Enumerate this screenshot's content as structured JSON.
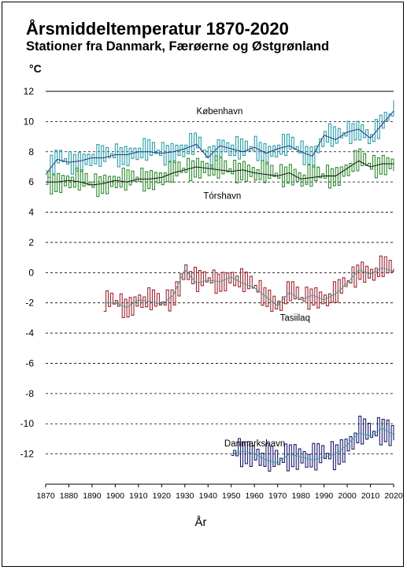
{
  "header": {
    "title": "Årsmiddeltemperatur 1870-2020",
    "subtitle": "Stationer fra Danmark, Færøerne og Østgrønland"
  },
  "chart_data": {
    "type": "line",
    "title": "Årsmiddeltemperatur 1870-2020",
    "subtitle": "Stationer fra Danmark, Færøerne og Østgrønland",
    "xlabel": "År",
    "ylabel": "°C",
    "xlim": [
      1870,
      2020
    ],
    "ylim": [
      -14,
      12
    ],
    "x_ticks": [
      1870,
      1880,
      1890,
      1900,
      1910,
      1920,
      1930,
      1940,
      1950,
      1960,
      1970,
      1980,
      1990,
      2000,
      2010,
      2020
    ],
    "y_ticks": [
      12,
      10,
      8,
      6,
      4,
      2,
      0,
      -2,
      -4,
      -6,
      -8,
      -10,
      -12
    ],
    "grid": "horizontal dashed",
    "series": [
      {
        "name": "København",
        "color": "#2a9fa8",
        "smooth_color": "#1a237e",
        "points": [
          [
            1870,
            6.5
          ],
          [
            1875,
            7.5
          ],
          [
            1880,
            7.3
          ],
          [
            1885,
            7.4
          ],
          [
            1890,
            7.6
          ],
          [
            1895,
            7.6
          ],
          [
            1900,
            7.8
          ],
          [
            1905,
            7.8
          ],
          [
            1910,
            8.0
          ],
          [
            1915,
            8.0
          ],
          [
            1920,
            7.9
          ],
          [
            1925,
            8.0
          ],
          [
            1930,
            8.2
          ],
          [
            1935,
            8.5
          ],
          [
            1940,
            7.6
          ],
          [
            1945,
            8.4
          ],
          [
            1950,
            8.2
          ],
          [
            1955,
            8.0
          ],
          [
            1960,
            8.3
          ],
          [
            1965,
            7.9
          ],
          [
            1970,
            8.2
          ],
          [
            1975,
            8.4
          ],
          [
            1980,
            8.0
          ],
          [
            1985,
            7.7
          ],
          [
            1990,
            9.1
          ],
          [
            1995,
            8.8
          ],
          [
            2000,
            9.3
          ],
          [
            2005,
            9.5
          ],
          [
            2010,
            8.9
          ],
          [
            2015,
            9.8
          ],
          [
            2020,
            10.7
          ]
        ]
      },
      {
        "name": "Tórshavn",
        "color": "#2e8b2e",
        "smooth_color": "#000000",
        "points": [
          [
            1870,
            6.0
          ],
          [
            1875,
            6.0
          ],
          [
            1880,
            6.1
          ],
          [
            1885,
            6.0
          ],
          [
            1890,
            5.8
          ],
          [
            1895,
            5.9
          ],
          [
            1900,
            6.1
          ],
          [
            1905,
            6.0
          ],
          [
            1910,
            6.2
          ],
          [
            1915,
            6.2
          ],
          [
            1920,
            6.3
          ],
          [
            1925,
            6.6
          ],
          [
            1930,
            6.8
          ],
          [
            1935,
            7.0
          ],
          [
            1940,
            6.9
          ],
          [
            1945,
            6.8
          ],
          [
            1950,
            6.7
          ],
          [
            1955,
            6.8
          ],
          [
            1960,
            6.6
          ],
          [
            1965,
            6.5
          ],
          [
            1970,
            6.4
          ],
          [
            1975,
            6.6
          ],
          [
            1980,
            6.2
          ],
          [
            1985,
            6.3
          ],
          [
            1990,
            6.4
          ],
          [
            1995,
            6.4
          ],
          [
            2000,
            6.9
          ],
          [
            2005,
            7.4
          ],
          [
            2010,
            7.0
          ],
          [
            2015,
            7.2
          ],
          [
            2020,
            7.2
          ]
        ]
      },
      {
        "name": "Tasiilaq",
        "color": "#a0262e",
        "smooth_color": "#2a9fa8",
        "points": [
          [
            1895,
            -2.0
          ],
          [
            1900,
            -2.0
          ],
          [
            1905,
            -2.3
          ],
          [
            1910,
            -1.8
          ],
          [
            1915,
            -1.9
          ],
          [
            1920,
            -2.1
          ],
          [
            1925,
            -1.5
          ],
          [
            1930,
            0.2
          ],
          [
            1935,
            -0.7
          ],
          [
            1940,
            -0.5
          ],
          [
            1945,
            -0.6
          ],
          [
            1950,
            -0.3
          ],
          [
            1955,
            -0.7
          ],
          [
            1960,
            -1.0
          ],
          [
            1965,
            -1.6
          ],
          [
            1970,
            -2.2
          ],
          [
            1975,
            -1.3
          ],
          [
            1980,
            -1.8
          ],
          [
            1985,
            -1.5
          ],
          [
            1990,
            -1.8
          ],
          [
            1995,
            -1.4
          ],
          [
            2000,
            -0.7
          ],
          [
            2005,
            0.2
          ],
          [
            2010,
            -0.1
          ],
          [
            2015,
            0.3
          ],
          [
            2020,
            0.1
          ]
        ]
      },
      {
        "name": "Danmarkshavn",
        "color": "#1a1a6e",
        "smooth_color": "#2a9fa8",
        "points": [
          [
            1950,
            -12.0
          ],
          [
            1955,
            -11.8
          ],
          [
            1960,
            -12.0
          ],
          [
            1965,
            -12.4
          ],
          [
            1970,
            -12.6
          ],
          [
            1975,
            -12.0
          ],
          [
            1980,
            -12.2
          ],
          [
            1985,
            -12.4
          ],
          [
            1990,
            -12.2
          ],
          [
            1995,
            -12.0
          ],
          [
            2000,
            -11.4
          ],
          [
            2005,
            -10.6
          ],
          [
            2010,
            -10.8
          ],
          [
            2015,
            -10.3
          ],
          [
            2020,
            -10.7
          ]
        ]
      }
    ],
    "annotations": [
      "København",
      "Tórshavn",
      "Tasiilaq",
      "Danmarkshavn"
    ]
  }
}
